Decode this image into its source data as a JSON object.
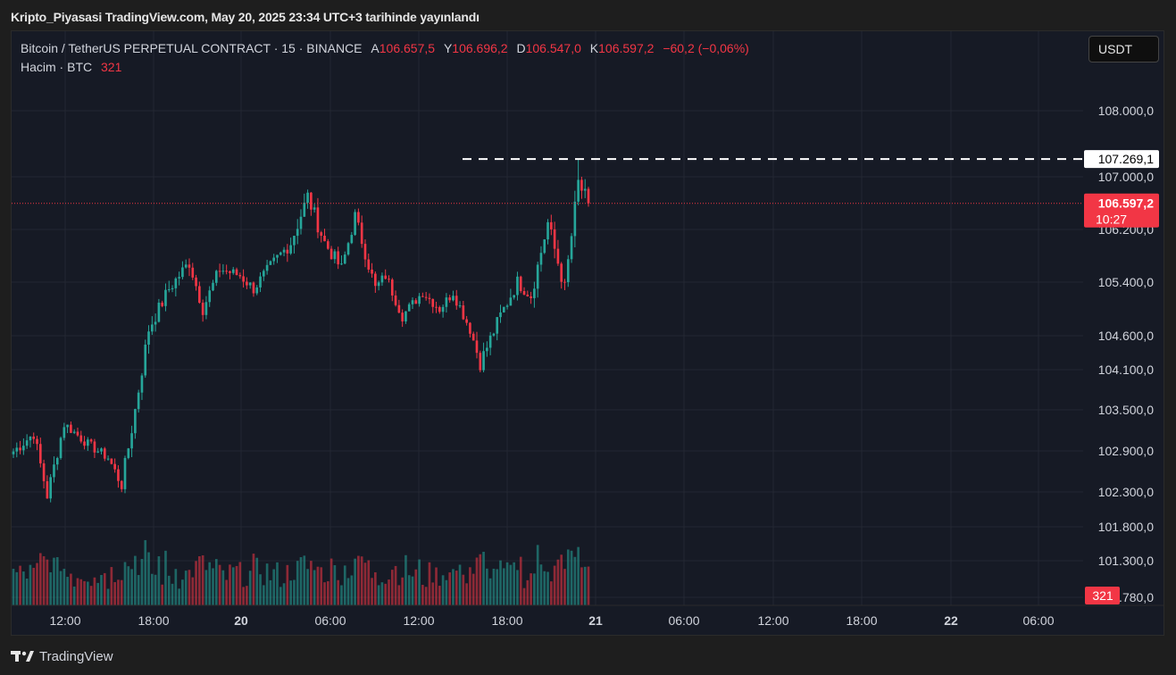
{
  "header": {
    "published_line": "Kripto_Piyasasi TradingView.com, May 20, 2025 23:34 UTC+3 tarihinde yayınlandı"
  },
  "legend": {
    "symbol": "Bitcoin / TetherUS PERPETUAL CONTRACT · 15 · BINANCE",
    "open_label": "A",
    "open_value": "106.657,5",
    "high_label": "Y",
    "high_value": "106.696,2",
    "low_label": "D",
    "low_value": "106.547,0",
    "close_label": "K",
    "close_value": "106.597,2",
    "change": "−60,2 (−0,06%)",
    "volume_label": "Hacim · BTC",
    "volume_value": "321"
  },
  "currency_button": {
    "label": "USDT"
  },
  "footer": {
    "brand": "TradingView",
    "logo_icon": "tradingview-logo-icon"
  },
  "colors": {
    "up": "#26a69a",
    "down": "#f23645",
    "background": "#161a25",
    "grid": "#232732",
    "axis_text": "#d1d4dc"
  },
  "chart_data": {
    "type": "candlestick",
    "timeframe": "15",
    "exchange": "BINANCE",
    "y_axis_ticks": [
      "108.000,0",
      "107.000,0",
      "106.200,0",
      "105.400,0",
      "104.600,0",
      "104.100,0",
      "103.500,0",
      "102.900,0",
      "102.300,0",
      "101.800,0",
      "101.300,0",
      "100.780,0"
    ],
    "x_axis_ticks": [
      "12:00",
      "18:00",
      "20",
      "06:00",
      "12:00",
      "18:00",
      "21",
      "06:00",
      "12:00",
      "18:00",
      "22",
      "06:00"
    ],
    "x_axis_bold": [
      false,
      false,
      true,
      false,
      false,
      false,
      true,
      false,
      false,
      false,
      true,
      false
    ],
    "high_marker": {
      "label": "107.269,1",
      "value": 107269.1
    },
    "last_price": {
      "label": "106.597,2",
      "value": 106597.2,
      "countdown": "10:27"
    },
    "volume_last": "321",
    "segments": [
      {
        "start": 102850,
        "end": 103150,
        "n": 7,
        "amp": 180
      },
      {
        "start": 103150,
        "end": 102250,
        "n": 4,
        "amp": 200
      },
      {
        "start": 102250,
        "end": 103300,
        "n": 5,
        "amp": 200
      },
      {
        "start": 103300,
        "end": 103000,
        "n": 7,
        "amp": 150
      },
      {
        "start": 103000,
        "end": 102800,
        "n": 6,
        "amp": 150
      },
      {
        "start": 102800,
        "end": 102400,
        "n": 4,
        "amp": 180
      },
      {
        "start": 102400,
        "end": 103500,
        "n": 4,
        "amp": 250
      },
      {
        "start": 103500,
        "end": 104700,
        "n": 4,
        "amp": 250
      },
      {
        "start": 104700,
        "end": 105300,
        "n": 6,
        "amp": 220
      },
      {
        "start": 105300,
        "end": 105700,
        "n": 6,
        "amp": 220
      },
      {
        "start": 105700,
        "end": 105000,
        "n": 4,
        "amp": 200
      },
      {
        "start": 105000,
        "end": 105600,
        "n": 5,
        "amp": 200
      },
      {
        "start": 105600,
        "end": 105500,
        "n": 6,
        "amp": 180
      },
      {
        "start": 105500,
        "end": 105300,
        "n": 4,
        "amp": 180
      },
      {
        "start": 105300,
        "end": 105700,
        "n": 6,
        "amp": 200
      },
      {
        "start": 105700,
        "end": 106000,
        "n": 5,
        "amp": 220
      },
      {
        "start": 106000,
        "end": 106700,
        "n": 5,
        "amp": 250
      },
      {
        "start": 106700,
        "end": 106000,
        "n": 5,
        "amp": 250
      },
      {
        "start": 106000,
        "end": 105600,
        "n": 5,
        "amp": 220
      },
      {
        "start": 105600,
        "end": 106400,
        "n": 4,
        "amp": 220
      },
      {
        "start": 106400,
        "end": 105300,
        "n": 6,
        "amp": 220
      },
      {
        "start": 105300,
        "end": 105500,
        "n": 3,
        "amp": 180
      },
      {
        "start": 105500,
        "end": 104900,
        "n": 5,
        "amp": 180
      },
      {
        "start": 104900,
        "end": 105250,
        "n": 6,
        "amp": 160
      },
      {
        "start": 105250,
        "end": 105000,
        "n": 5,
        "amp": 160
      },
      {
        "start": 105000,
        "end": 105250,
        "n": 4,
        "amp": 160
      },
      {
        "start": 105250,
        "end": 104700,
        "n": 5,
        "amp": 180
      },
      {
        "start": 104700,
        "end": 104200,
        "n": 3,
        "amp": 220
      },
      {
        "start": 104200,
        "end": 104900,
        "n": 6,
        "amp": 220
      },
      {
        "start": 104900,
        "end": 105400,
        "n": 5,
        "amp": 220
      },
      {
        "start": 105400,
        "end": 105200,
        "n": 4,
        "amp": 200
      },
      {
        "start": 105200,
        "end": 106300,
        "n": 5,
        "amp": 250
      },
      {
        "start": 106300,
        "end": 105700,
        "n": 3,
        "amp": 250
      },
      {
        "start": 105700,
        "end": 105300,
        "n": 2,
        "amp": 250
      },
      {
        "start": 105300,
        "end": 106900,
        "n": 4,
        "amp": 300
      },
      {
        "start": 106900,
        "end": 106600,
        "n": 3,
        "amp": 250
      }
    ]
  }
}
